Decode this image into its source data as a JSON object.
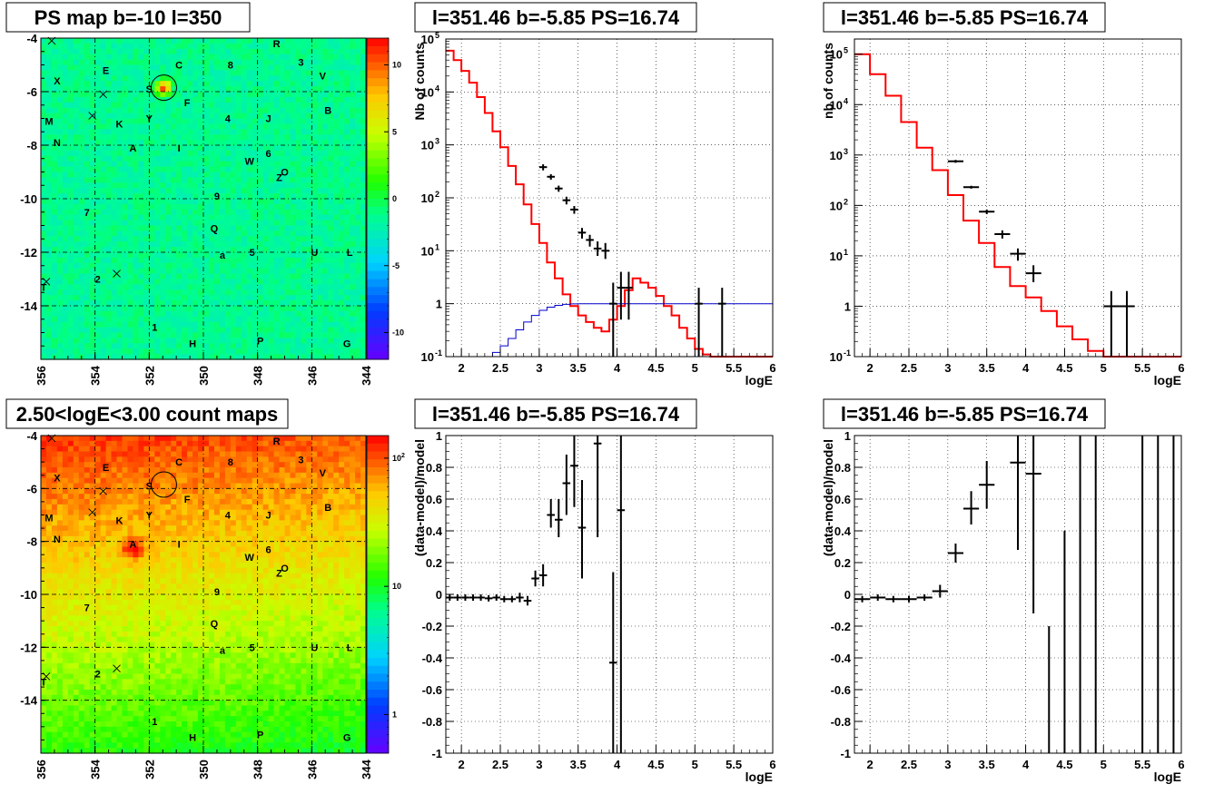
{
  "chart_data": [
    {
      "id": "psmap",
      "type": "heatmap",
      "title": "PS map b=-10 l=350",
      "xlabel": "",
      "ylabel": "",
      "xlim": [
        356,
        344
      ],
      "ylim": [
        -16,
        -4
      ],
      "xticks": [
        356,
        354,
        352,
        350,
        348,
        346,
        344
      ],
      "yticks": [
        -4,
        -6,
        -8,
        -10,
        -12,
        -14
      ],
      "colorbar": {
        "scale": "linear",
        "min": -12,
        "max": 12,
        "ticks": [
          -10,
          -5,
          0,
          5,
          10
        ]
      },
      "background_level": 0.3,
      "hotspots": [
        {
          "l": 351.46,
          "b": -5.85,
          "value": 12
        }
      ],
      "circle": {
        "l": 351.46,
        "b": -5.85
      }
    },
    {
      "id": "spec1",
      "type": "line",
      "title": "l=351.46 b=-5.85 PS=16.74",
      "xlabel": "logE",
      "ylabel": "Nb of counts",
      "xlim": [
        1.8,
        6
      ],
      "ylim": [
        0.1,
        100000
      ],
      "yscale": "log",
      "xticks": [
        2,
        2.5,
        3,
        3.5,
        4,
        4.5,
        5,
        5.5,
        6
      ],
      "yticks": [
        {
          "v": 0.1,
          "t": "10"
        },
        {
          "v": 1,
          "t": "1"
        },
        {
          "v": 10,
          "t": "10"
        },
        {
          "v": 100,
          "t": "10"
        },
        {
          "v": 1000,
          "t": "10"
        },
        {
          "v": 10000,
          "t": "10"
        },
        {
          "v": 100000,
          "t": "10"
        }
      ],
      "grid": true,
      "series": [
        {
          "color": "#ff0000",
          "style": "step",
          "edges": [
            1.8,
            1.9,
            2.0,
            2.1,
            2.2,
            2.3,
            2.4,
            2.5,
            2.6,
            2.7,
            2.8,
            2.9,
            3.0,
            3.1,
            3.2,
            3.3,
            3.4,
            3.5,
            3.6,
            3.7,
            3.8,
            3.9,
            4.0,
            4.1,
            4.2,
            4.3,
            4.4,
            4.5,
            4.6,
            4.7,
            4.8,
            4.9,
            5.0,
            5.1,
            5.2,
            6.0
          ],
          "values": [
            60000,
            40000,
            25000,
            15000,
            8000,
            4000,
            1800,
            900,
            400,
            180,
            75,
            32,
            14,
            6,
            3,
            1.5,
            0.9,
            0.6,
            0.45,
            0.35,
            0.3,
            0.5,
            0.9,
            1.8,
            3.0,
            2.5,
            2.0,
            1.4,
            0.9,
            0.6,
            0.35,
            0.22,
            0.14,
            0.11,
            0.1
          ]
        },
        {
          "color": "#0000cc",
          "style": "step",
          "edges": [
            2.3,
            2.4,
            2.5,
            2.6,
            2.7,
            2.8,
            2.9,
            3.0,
            3.1,
            3.2,
            3.3,
            3.4,
            3.5,
            3.6,
            3.7,
            3.8,
            3.9,
            4.0,
            6.0
          ],
          "values": [
            0.1,
            0.12,
            0.16,
            0.22,
            0.32,
            0.45,
            0.6,
            0.75,
            0.86,
            0.93,
            0.97,
            0.99,
            1,
            1,
            1,
            1,
            1,
            1
          ]
        },
        {
          "color": "#000000",
          "style": "errorbars",
          "points": [
            {
              "x": 3.05,
              "y": 380,
              "dx": 0.05,
              "lo": 330,
              "hi": 430
            },
            {
              "x": 3.15,
              "y": 250,
              "dx": 0.05,
              "lo": 220,
              "hi": 280
            },
            {
              "x": 3.25,
              "y": 150,
              "dx": 0.05,
              "lo": 130,
              "hi": 170
            },
            {
              "x": 3.35,
              "y": 90,
              "dx": 0.05,
              "lo": 75,
              "hi": 105
            },
            {
              "x": 3.45,
              "y": 60,
              "dx": 0.05,
              "lo": 50,
              "hi": 70
            },
            {
              "x": 3.55,
              "y": 22,
              "dx": 0.05,
              "lo": 17,
              "hi": 27
            },
            {
              "x": 3.65,
              "y": 16,
              "dx": 0.05,
              "lo": 12,
              "hi": 20
            },
            {
              "x": 3.75,
              "y": 11,
              "dx": 0.05,
              "lo": 8,
              "hi": 15
            },
            {
              "x": 3.85,
              "y": 10,
              "dx": 0.05,
              "lo": 7,
              "hi": 14
            },
            {
              "x": 3.95,
              "y": 1,
              "dx": 0.05,
              "lo": 0.1,
              "hi": 2.5
            },
            {
              "x": 4.05,
              "y": 2,
              "dx": 0.05,
              "lo": 0.5,
              "hi": 4
            },
            {
              "x": 4.15,
              "y": 2,
              "dx": 0.05,
              "lo": 0.5,
              "hi": 4
            },
            {
              "x": 5.05,
              "y": 1,
              "dx": 0.05,
              "lo": 0.1,
              "hi": 2
            },
            {
              "x": 5.35,
              "y": 1,
              "dx": 0.05,
              "lo": 0.1,
              "hi": 2
            }
          ]
        }
      ]
    },
    {
      "id": "spec2",
      "type": "line",
      "title": "l=351.46 b=-5.85 PS=16.74",
      "xlabel": "logE",
      "ylabel": "nb of counts",
      "xlim": [
        1.8,
        6
      ],
      "ylim": [
        0.1,
        200000
      ],
      "yscale": "log",
      "xticks": [
        2,
        2.5,
        3,
        3.5,
        4,
        4.5,
        5,
        5.5,
        6
      ],
      "yticks": [
        {
          "v": 0.1,
          "t": "10"
        },
        {
          "v": 1,
          "t": "1"
        },
        {
          "v": 10,
          "t": "10"
        },
        {
          "v": 100,
          "t": "10"
        },
        {
          "v": 1000,
          "t": "10"
        },
        {
          "v": 10000,
          "t": "10"
        },
        {
          "v": 100000,
          "t": "10"
        }
      ],
      "grid": true,
      "series": [
        {
          "color": "#ff0000",
          "style": "step",
          "edges": [
            1.8,
            2.0,
            2.2,
            2.4,
            2.6,
            2.8,
            3.0,
            3.2,
            3.4,
            3.6,
            3.8,
            4.0,
            4.2,
            4.4,
            4.6,
            4.8,
            5.0,
            5.2,
            5.4,
            5.6,
            6.0
          ],
          "values": [
            100000,
            40000,
            15000,
            4500,
            1400,
            500,
            160,
            50,
            18,
            6,
            2.5,
            1.5,
            0.8,
            0.4,
            0.22,
            0.13,
            0.1,
            0.1,
            0.1,
            0.1
          ]
        },
        {
          "color": "#000000",
          "style": "errorbars",
          "points": [
            {
              "x": 3.1,
              "y": 750,
              "dx": 0.1,
              "lo": 700,
              "hi": 800
            },
            {
              "x": 3.3,
              "y": 230,
              "dx": 0.1,
              "lo": 215,
              "hi": 245
            },
            {
              "x": 3.5,
              "y": 75,
              "dx": 0.1,
              "lo": 67,
              "hi": 83
            },
            {
              "x": 3.7,
              "y": 27,
              "dx": 0.1,
              "lo": 22,
              "hi": 32
            },
            {
              "x": 3.9,
              "y": 11,
              "dx": 0.1,
              "lo": 8,
              "hi": 14
            },
            {
              "x": 4.1,
              "y": 4.5,
              "dx": 0.1,
              "lo": 3,
              "hi": 6.5
            },
            {
              "x": 5.1,
              "y": 1,
              "dx": 0.1,
              "lo": 0.1,
              "hi": 2
            },
            {
              "x": 5.3,
              "y": 1,
              "dx": 0.1,
              "lo": 0.1,
              "hi": 2
            }
          ]
        }
      ]
    },
    {
      "id": "cmap",
      "type": "heatmap",
      "title": "2.50<logE<3.00 count maps",
      "xlabel": "",
      "ylabel": "",
      "xlim": [
        356,
        344
      ],
      "ylim": [
        -16,
        -4
      ],
      "xticks": [
        356,
        354,
        352,
        350,
        348,
        346,
        344
      ],
      "yticks": [
        -4,
        -6,
        -8,
        -10,
        -12,
        -14
      ],
      "colorbar": {
        "scale": "log",
        "min": 0.5,
        "max": 150,
        "ticks": [
          {
            "v": 1,
            "t": "1"
          },
          {
            "v": 10,
            "t": "10"
          },
          {
            "v": 100,
            "t": "10"
          }
        ]
      },
      "hotspots": [
        {
          "l": 352.6,
          "b": -8.3,
          "value": 100
        }
      ],
      "circle": {
        "l": 351.46,
        "b": -5.85
      }
    },
    {
      "id": "res1",
      "type": "scatter",
      "title": "l=351.46 b=-5.85 PS=16.74",
      "xlabel": "logE",
      "ylabel": "(data-model)/model",
      "xlim": [
        1.8,
        6
      ],
      "ylim": [
        -1,
        1
      ],
      "xticks": [
        2,
        2.5,
        3,
        3.5,
        4,
        4.5,
        5,
        5.5,
        6
      ],
      "yticks": [
        -1,
        -0.8,
        -0.6,
        -0.4,
        -0.2,
        0,
        0.2,
        0.4,
        0.6,
        0.8,
        1
      ],
      "grid": true,
      "points": [
        {
          "x": 1.85,
          "y": -0.02,
          "dx": 0.05,
          "lo": -0.04,
          "hi": 0.0
        },
        {
          "x": 1.95,
          "y": -0.02,
          "dx": 0.05,
          "lo": -0.04,
          "hi": 0.0
        },
        {
          "x": 2.05,
          "y": -0.02,
          "dx": 0.05,
          "lo": -0.04,
          "hi": 0.0
        },
        {
          "x": 2.15,
          "y": -0.02,
          "dx": 0.05,
          "lo": -0.04,
          "hi": 0.0
        },
        {
          "x": 2.25,
          "y": -0.02,
          "dx": 0.05,
          "lo": -0.04,
          "hi": 0.0
        },
        {
          "x": 2.35,
          "y": -0.025,
          "dx": 0.05,
          "lo": -0.045,
          "hi": -0.005
        },
        {
          "x": 2.45,
          "y": -0.02,
          "dx": 0.05,
          "lo": -0.04,
          "hi": 0.0
        },
        {
          "x": 2.55,
          "y": -0.03,
          "dx": 0.05,
          "lo": -0.05,
          "hi": -0.01
        },
        {
          "x": 2.65,
          "y": -0.03,
          "dx": 0.05,
          "lo": -0.05,
          "hi": -0.01
        },
        {
          "x": 2.75,
          "y": -0.02,
          "dx": 0.05,
          "lo": -0.05,
          "hi": 0.01
        },
        {
          "x": 2.85,
          "y": -0.04,
          "dx": 0.05,
          "lo": -0.07,
          "hi": -0.01
        },
        {
          "x": 2.95,
          "y": 0.1,
          "dx": 0.05,
          "lo": 0.05,
          "hi": 0.15
        },
        {
          "x": 3.05,
          "y": 0.12,
          "dx": 0.05,
          "lo": 0.05,
          "hi": 0.19
        },
        {
          "x": 3.15,
          "y": 0.5,
          "dx": 0.05,
          "lo": 0.42,
          "hi": 0.6
        },
        {
          "x": 3.25,
          "y": 0.47,
          "dx": 0.05,
          "lo": 0.36,
          "hi": 0.6
        },
        {
          "x": 3.35,
          "y": 0.7,
          "dx": 0.05,
          "lo": 0.5,
          "hi": 0.88
        },
        {
          "x": 3.45,
          "y": 0.81,
          "dx": 0.05,
          "lo": 0.55,
          "hi": 1.0
        },
        {
          "x": 3.55,
          "y": 0.42,
          "dx": 0.05,
          "lo": 0.1,
          "hi": 0.72
        },
        {
          "x": 3.75,
          "y": 0.95,
          "dx": 0.05,
          "lo": 0.36,
          "hi": 1.0
        },
        {
          "x": 3.95,
          "y": -0.43,
          "dx": 0.05,
          "lo": -1.0,
          "hi": 0.14
        },
        {
          "x": 4.05,
          "y": 0.53,
          "dx": 0.05,
          "lo": -1.0,
          "hi": 1.0
        }
      ]
    },
    {
      "id": "res2",
      "type": "scatter",
      "title": "l=351.46 b=-5.85 PS=16.74",
      "xlabel": "logE",
      "ylabel": "(data-model)/model",
      "xlim": [
        1.8,
        6
      ],
      "ylim": [
        -1,
        1
      ],
      "xticks": [
        2,
        2.5,
        3,
        3.5,
        4,
        4.5,
        5,
        5.5,
        6
      ],
      "yticks": [
        -1,
        -0.8,
        -0.6,
        -0.4,
        -0.2,
        0,
        0.2,
        0.4,
        0.6,
        0.8,
        1
      ],
      "grid": true,
      "points": [
        {
          "x": 1.9,
          "y": -0.03,
          "dx": 0.1,
          "lo": -0.05,
          "hi": -0.01
        },
        {
          "x": 2.1,
          "y": -0.02,
          "dx": 0.1,
          "lo": -0.04,
          "hi": 0.0
        },
        {
          "x": 2.3,
          "y": -0.03,
          "dx": 0.1,
          "lo": -0.05,
          "hi": -0.01
        },
        {
          "x": 2.5,
          "y": -0.03,
          "dx": 0.1,
          "lo": -0.05,
          "hi": -0.01
        },
        {
          "x": 2.7,
          "y": -0.02,
          "dx": 0.1,
          "lo": -0.04,
          "hi": 0.0
        },
        {
          "x": 2.9,
          "y": 0.02,
          "dx": 0.1,
          "lo": -0.02,
          "hi": 0.06
        },
        {
          "x": 3.1,
          "y": 0.26,
          "dx": 0.1,
          "lo": 0.2,
          "hi": 0.32
        },
        {
          "x": 3.3,
          "y": 0.54,
          "dx": 0.1,
          "lo": 0.44,
          "hi": 0.65
        },
        {
          "x": 3.5,
          "y": 0.69,
          "dx": 0.1,
          "lo": 0.54,
          "hi": 0.84
        },
        {
          "x": 3.9,
          "y": 0.83,
          "dx": 0.1,
          "lo": 0.28,
          "hi": 1.0
        },
        {
          "x": 4.1,
          "y": 0.76,
          "dx": 0.1,
          "lo": -0.12,
          "hi": 1.0
        },
        {
          "x": 4.3,
          "y": null,
          "dx": 0.0,
          "lo": -1.0,
          "hi": -0.2
        },
        {
          "x": 4.5,
          "y": null,
          "dx": 0.0,
          "lo": -1.0,
          "hi": 0.4
        },
        {
          "x": 4.7,
          "y": null,
          "dx": 0.0,
          "lo": -1.0,
          "hi": 1.0
        },
        {
          "x": 4.9,
          "y": null,
          "dx": 0.0,
          "lo": -1.0,
          "hi": 1.0
        },
        {
          "x": 5.5,
          "y": null,
          "dx": 0.0,
          "lo": -1.0,
          "hi": 1.0
        },
        {
          "x": 5.7,
          "y": null,
          "dx": 0.0,
          "lo": -1.0,
          "hi": 1.0
        },
        {
          "x": 5.9,
          "y": null,
          "dx": 0.0,
          "lo": -1.0,
          "hi": 1.0
        }
      ]
    }
  ],
  "sources": [
    {
      "t": "R",
      "l": 347.3,
      "b": -4.2
    },
    {
      "t": "C",
      "l": 350.9,
      "b": -5.0
    },
    {
      "t": "8",
      "l": 349.0,
      "b": -5.0
    },
    {
      "t": "3",
      "l": 346.4,
      "b": -4.9
    },
    {
      "t": "E",
      "l": 353.6,
      "b": -5.2
    },
    {
      "t": "V",
      "l": 345.6,
      "b": -5.4
    },
    {
      "t": "X",
      "l": 355.4,
      "b": -5.6
    },
    {
      "t": "S",
      "l": 352.0,
      "b": -5.9
    },
    {
      "t": "F",
      "l": 350.6,
      "b": -6.4
    },
    {
      "t": "B",
      "l": 345.4,
      "b": -6.7
    },
    {
      "t": "M",
      "l": 355.7,
      "b": -7.1
    },
    {
      "t": "K",
      "l": 353.1,
      "b": -7.2
    },
    {
      "t": "Y",
      "l": 352.0,
      "b": -7.0
    },
    {
      "t": "4",
      "l": 349.1,
      "b": -7.0
    },
    {
      "t": "J",
      "l": 347.6,
      "b": -7.0
    },
    {
      "t": "N",
      "l": 355.4,
      "b": -7.9
    },
    {
      "t": "A",
      "l": 352.6,
      "b": -8.1
    },
    {
      "t": "I",
      "l": 350.9,
      "b": -8.1
    },
    {
      "t": "6",
      "l": 347.6,
      "b": -8.3
    },
    {
      "t": "W",
      "l": 348.3,
      "b": -8.6
    },
    {
      "t": "Z",
      "l": 347.2,
      "b": -9.2
    },
    {
      "t": "O",
      "l": 347.0,
      "b": -9.0
    },
    {
      "t": "9",
      "l": 349.5,
      "b": -9.9
    },
    {
      "t": "7",
      "l": 354.3,
      "b": -10.5
    },
    {
      "t": "Q",
      "l": 349.6,
      "b": -11.1
    },
    {
      "t": "a",
      "l": 349.3,
      "b": -12.1
    },
    {
      "t": "5",
      "l": 348.2,
      "b": -12.0
    },
    {
      "t": "U",
      "l": 345.9,
      "b": -12.0
    },
    {
      "t": "L",
      "l": 344.6,
      "b": -12.0
    },
    {
      "t": "2",
      "l": 353.9,
      "b": -13.0
    },
    {
      "t": "T",
      "l": 355.9,
      "b": -13.3
    },
    {
      "t": "1",
      "l": 351.8,
      "b": -14.8
    },
    {
      "t": "H",
      "l": 350.4,
      "b": -15.4
    },
    {
      "t": "P",
      "l": 347.9,
      "b": -15.3
    },
    {
      "t": "G",
      "l": 344.7,
      "b": -15.4
    }
  ],
  "crosses": [
    {
      "l": 355.6,
      "b": -4.1
    },
    {
      "l": 353.7,
      "b": -6.1
    },
    {
      "l": 354.1,
      "b": -6.9
    },
    {
      "l": 353.2,
      "b": -12.8
    },
    {
      "l": 355.8,
      "b": -13.1
    }
  ]
}
